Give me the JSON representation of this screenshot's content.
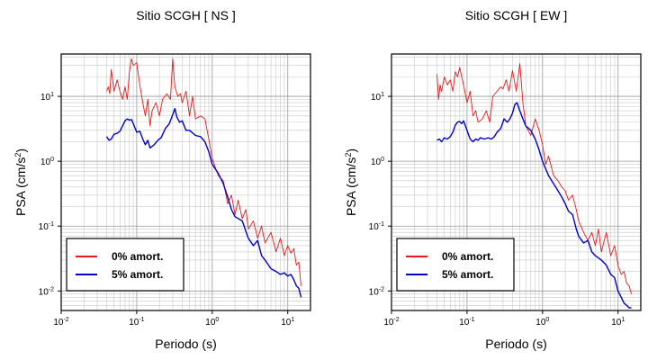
{
  "chart_data": [
    {
      "type": "line",
      "title": "Sitio SCGH [ NS ]",
      "xlabel": "Periodo (s)",
      "ylabel": "PSA (cm/s2)",
      "xscale": "log",
      "yscale": "log",
      "xlim": [
        0.01,
        20
      ],
      "ylim": [
        0.005,
        45
      ],
      "grid": true,
      "legend_position": "bottom-left",
      "x_ticks": [
        "10-2",
        "10-1",
        "100",
        "101"
      ],
      "y_ticks": [
        "10-2",
        "10-1",
        "100",
        "101"
      ],
      "series": [
        {
          "name": "0% amort.",
          "color": "#e41a1c",
          "points": [
            [
              0.04,
              12
            ],
            [
              0.042,
              14
            ],
            [
              0.044,
              11
            ],
            [
              0.046,
              26
            ],
            [
              0.05,
              12
            ],
            [
              0.055,
              18
            ],
            [
              0.06,
              12
            ],
            [
              0.065,
              9
            ],
            [
              0.07,
              14
            ],
            [
              0.075,
              9
            ],
            [
              0.08,
              24
            ],
            [
              0.085,
              38
            ],
            [
              0.09,
              30
            ],
            [
              0.1,
              33
            ],
            [
              0.11,
              15
            ],
            [
              0.12,
              8
            ],
            [
              0.13,
              5
            ],
            [
              0.14,
              9
            ],
            [
              0.15,
              3.5
            ],
            [
              0.16,
              6
            ],
            [
              0.18,
              8
            ],
            [
              0.2,
              5
            ],
            [
              0.22,
              9
            ],
            [
              0.25,
              11
            ],
            [
              0.28,
              9
            ],
            [
              0.3,
              38
            ],
            [
              0.32,
              14
            ],
            [
              0.35,
              10
            ],
            [
              0.38,
              11
            ],
            [
              0.4,
              8
            ],
            [
              0.45,
              12
            ],
            [
              0.5,
              5
            ],
            [
              0.55,
              10
            ],
            [
              0.6,
              4.5
            ],
            [
              0.7,
              5
            ],
            [
              0.8,
              4.5
            ],
            [
              0.9,
              2.2
            ],
            [
              1.0,
              1.1
            ],
            [
              1.2,
              0.6
            ],
            [
              1.4,
              0.5
            ],
            [
              1.6,
              0.22
            ],
            [
              1.8,
              0.3
            ],
            [
              2.0,
              0.15
            ],
            [
              2.2,
              0.25
            ],
            [
              2.5,
              0.13
            ],
            [
              2.8,
              0.18
            ],
            [
              3.0,
              0.09
            ],
            [
              3.5,
              0.12
            ],
            [
              4.0,
              0.065
            ],
            [
              4.5,
              0.1
            ],
            [
              5.0,
              0.055
            ],
            [
              6.0,
              0.08
            ],
            [
              7.0,
              0.04
            ],
            [
              8.0,
              0.065
            ],
            [
              9.0,
              0.035
            ],
            [
              10.0,
              0.05
            ],
            [
              11.0,
              0.038
            ],
            [
              12.0,
              0.045
            ],
            [
              13.0,
              0.025
            ],
            [
              14.0,
              0.028
            ],
            [
              15.0,
              0.012
            ]
          ]
        },
        {
          "name": "5% amort.",
          "color": "#0000cc",
          "points": [
            [
              0.04,
              2.4
            ],
            [
              0.043,
              2.1
            ],
            [
              0.046,
              2.2
            ],
            [
              0.05,
              2.6
            ],
            [
              0.055,
              2.7
            ],
            [
              0.06,
              2.9
            ],
            [
              0.065,
              3.5
            ],
            [
              0.07,
              4.2
            ],
            [
              0.075,
              4.5
            ],
            [
              0.08,
              4.3
            ],
            [
              0.085,
              4.4
            ],
            [
              0.09,
              3.8
            ],
            [
              0.1,
              2.8
            ],
            [
              0.11,
              2.9
            ],
            [
              0.12,
              2.2
            ],
            [
              0.13,
              1.8
            ],
            [
              0.14,
              2.1
            ],
            [
              0.15,
              1.6
            ],
            [
              0.17,
              1.8
            ],
            [
              0.19,
              2.1
            ],
            [
              0.21,
              2.3
            ],
            [
              0.24,
              3.2
            ],
            [
              0.27,
              3.8
            ],
            [
              0.3,
              5.2
            ],
            [
              0.32,
              6.5
            ],
            [
              0.34,
              4.8
            ],
            [
              0.37,
              4.0
            ],
            [
              0.4,
              4.2
            ],
            [
              0.45,
              3.0
            ],
            [
              0.5,
              3.0
            ],
            [
              0.6,
              2.5
            ],
            [
              0.7,
              2.4
            ],
            [
              0.8,
              2.0
            ],
            [
              0.9,
              1.4
            ],
            [
              1.0,
              0.9
            ],
            [
              1.2,
              0.65
            ],
            [
              1.4,
              0.45
            ],
            [
              1.6,
              0.28
            ],
            [
              1.8,
              0.18
            ],
            [
              2.0,
              0.14
            ],
            [
              2.5,
              0.12
            ],
            [
              3.0,
              0.065
            ],
            [
              3.5,
              0.05
            ],
            [
              4.0,
              0.06
            ],
            [
              4.5,
              0.035
            ],
            [
              5.0,
              0.03
            ],
            [
              6.0,
              0.022
            ],
            [
              7.0,
              0.02
            ],
            [
              8.0,
              0.018
            ],
            [
              9.0,
              0.019
            ],
            [
              10.0,
              0.017
            ],
            [
              11.0,
              0.018
            ],
            [
              12.0,
              0.015
            ],
            [
              13.0,
              0.012
            ],
            [
              14.0,
              0.011
            ],
            [
              15.0,
              0.008
            ]
          ]
        }
      ],
      "legend": [
        "0% amort.",
        "5% amort."
      ]
    },
    {
      "type": "line",
      "title": "Sitio SCGH [ EW ]",
      "xlabel": "Periodo (s)",
      "ylabel": "PSA (cm/s2)",
      "xscale": "log",
      "yscale": "log",
      "xlim": [
        0.01,
        20
      ],
      "ylim": [
        0.005,
        45
      ],
      "grid": true,
      "legend_position": "bottom-left",
      "x_ticks": [
        "10-2",
        "10-1",
        "100",
        "101"
      ],
      "y_ticks": [
        "10-2",
        "10-1",
        "100",
        "101"
      ],
      "series": [
        {
          "name": "0% amort.",
          "color": "#e41a1c",
          "points": [
            [
              0.04,
              22
            ],
            [
              0.042,
              9
            ],
            [
              0.044,
              15
            ],
            [
              0.046,
              12
            ],
            [
              0.05,
              20
            ],
            [
              0.055,
              15
            ],
            [
              0.06,
              18
            ],
            [
              0.065,
              12
            ],
            [
              0.07,
              24
            ],
            [
              0.075,
              20
            ],
            [
              0.08,
              28
            ],
            [
              0.085,
              20
            ],
            [
              0.09,
              15
            ],
            [
              0.1,
              8
            ],
            [
              0.11,
              12
            ],
            [
              0.12,
              5
            ],
            [
              0.13,
              6
            ],
            [
              0.14,
              4
            ],
            [
              0.16,
              4.5
            ],
            [
              0.18,
              6
            ],
            [
              0.2,
              4
            ],
            [
              0.22,
              10
            ],
            [
              0.25,
              12
            ],
            [
              0.28,
              14
            ],
            [
              0.3,
              13
            ],
            [
              0.33,
              18
            ],
            [
              0.36,
              12
            ],
            [
              0.4,
              25
            ],
            [
              0.45,
              12
            ],
            [
              0.5,
              32
            ],
            [
              0.55,
              8
            ],
            [
              0.6,
              3.5
            ],
            [
              0.7,
              2.5
            ],
            [
              0.8,
              4.5
            ],
            [
              0.9,
              3.0
            ],
            [
              1.0,
              1.8
            ],
            [
              1.1,
              0.9
            ],
            [
              1.2,
              1.2
            ],
            [
              1.4,
              0.6
            ],
            [
              1.6,
              0.5
            ],
            [
              1.8,
              0.4
            ],
            [
              2.0,
              0.35
            ],
            [
              2.2,
              0.25
            ],
            [
              2.5,
              0.3
            ],
            [
              2.8,
              0.18
            ],
            [
              3.0,
              0.12
            ],
            [
              3.5,
              0.08
            ],
            [
              4.0,
              0.06
            ],
            [
              4.5,
              0.08
            ],
            [
              5.0,
              0.05
            ],
            [
              5.5,
              0.09
            ],
            [
              6.0,
              0.04
            ],
            [
              7.0,
              0.08
            ],
            [
              8.0,
              0.035
            ],
            [
              9.0,
              0.05
            ],
            [
              10.0,
              0.025
            ],
            [
              11.0,
              0.018
            ],
            [
              12.0,
              0.02
            ],
            [
              13.0,
              0.013
            ],
            [
              14.0,
              0.012
            ],
            [
              15.0,
              0.009
            ]
          ]
        },
        {
          "name": "5% amort.",
          "color": "#0000cc",
          "points": [
            [
              0.04,
              2.1
            ],
            [
              0.043,
              2.2
            ],
            [
              0.046,
              2.0
            ],
            [
              0.05,
              2.3
            ],
            [
              0.055,
              2.2
            ],
            [
              0.06,
              2.4
            ],
            [
              0.065,
              2.8
            ],
            [
              0.07,
              3.6
            ],
            [
              0.075,
              4.0
            ],
            [
              0.08,
              4.1
            ],
            [
              0.085,
              3.8
            ],
            [
              0.09,
              4.2
            ],
            [
              0.1,
              3.0
            ],
            [
              0.11,
              2.2
            ],
            [
              0.12,
              2.0
            ],
            [
              0.13,
              2.2
            ],
            [
              0.14,
              2.1
            ],
            [
              0.15,
              2.3
            ],
            [
              0.17,
              2.2
            ],
            [
              0.19,
              2.3
            ],
            [
              0.21,
              2.2
            ],
            [
              0.23,
              2.4
            ],
            [
              0.25,
              2.8
            ],
            [
              0.28,
              3.2
            ],
            [
              0.31,
              4.5
            ],
            [
              0.34,
              4.0
            ],
            [
              0.37,
              4.5
            ],
            [
              0.4,
              5.5
            ],
            [
              0.43,
              7.5
            ],
            [
              0.46,
              8.0
            ],
            [
              0.5,
              6.0
            ],
            [
              0.55,
              4.5
            ],
            [
              0.6,
              3.5
            ],
            [
              0.7,
              3.0
            ],
            [
              0.8,
              2.2
            ],
            [
              0.9,
              1.5
            ],
            [
              1.0,
              1.0
            ],
            [
              1.2,
              0.6
            ],
            [
              1.4,
              0.45
            ],
            [
              1.6,
              0.35
            ],
            [
              1.8,
              0.28
            ],
            [
              2.0,
              0.22
            ],
            [
              2.2,
              0.17
            ],
            [
              2.5,
              0.15
            ],
            [
              2.8,
              0.09
            ],
            [
              3.0,
              0.07
            ],
            [
              3.5,
              0.055
            ],
            [
              4.0,
              0.06
            ],
            [
              4.5,
              0.04
            ],
            [
              5.0,
              0.035
            ],
            [
              6.0,
              0.03
            ],
            [
              7.0,
              0.025
            ],
            [
              8.0,
              0.018
            ],
            [
              9.0,
              0.016
            ],
            [
              10.0,
              0.01
            ],
            [
              11.0,
              0.008
            ],
            [
              12.0,
              0.0065
            ],
            [
              13.0,
              0.006
            ],
            [
              14.0,
              0.0055
            ],
            [
              15.0,
              0.0055
            ]
          ]
        }
      ],
      "legend": [
        "0% amort.",
        "5% amort."
      ]
    }
  ]
}
